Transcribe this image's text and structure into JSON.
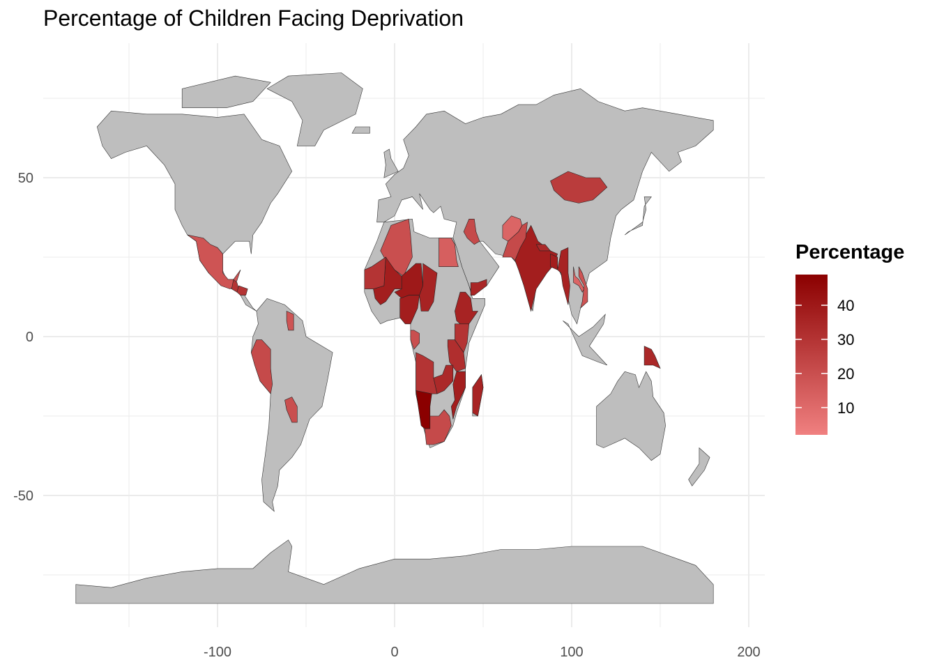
{
  "title": "Percentage of Children Facing Deprivation",
  "legend": {
    "title": "Percentage",
    "min": 2,
    "max": 49,
    "ticks": [
      10,
      20,
      30,
      40
    ],
    "color_low": "#f08080",
    "color_high": "#8b0000"
  },
  "chart_data": {
    "type": "choropleth",
    "xlim": [
      -185,
      205
    ],
    "ylim": [
      -90,
      83
    ],
    "x_ticks": [
      "-100",
      "0",
      "100",
      "200"
    ],
    "y_ticks": [
      "50",
      "0",
      "-50"
    ],
    "x_tick_values": [
      -100,
      0,
      100,
      200
    ],
    "y_tick_values": [
      50,
      0,
      -50
    ],
    "no_data_color": "#bebebe",
    "grid": true,
    "legend_position": "right",
    "regions": [
      {
        "name": "India",
        "value": 38
      },
      {
        "name": "Bangladesh",
        "value": 38
      },
      {
        "name": "Myanmar",
        "value": 36
      },
      {
        "name": "Nepal",
        "value": 34
      },
      {
        "name": "Mongolia",
        "value": 27
      },
      {
        "name": "Afghanistan",
        "value": 12
      },
      {
        "name": "Pakistan",
        "value": 22
      },
      {
        "name": "Mexico",
        "value": 18
      },
      {
        "name": "Guatemala",
        "value": 30
      },
      {
        "name": "Honduras",
        "value": 30
      },
      {
        "name": "Peru",
        "value": 22
      },
      {
        "name": "Paraguay",
        "value": 20
      },
      {
        "name": "Guyana",
        "value": 18
      },
      {
        "name": "Algeria",
        "value": 20
      },
      {
        "name": "Egypt",
        "value": 14
      },
      {
        "name": "Iraq",
        "value": 22
      },
      {
        "name": "Yemen",
        "value": 35
      },
      {
        "name": "Ethiopia",
        "value": 36
      },
      {
        "name": "Mali",
        "value": 38
      },
      {
        "name": "Niger",
        "value": 40
      },
      {
        "name": "Chad",
        "value": 36
      },
      {
        "name": "Nigeria",
        "value": 38
      },
      {
        "name": "Mauritania",
        "value": 30
      },
      {
        "name": "Angola",
        "value": 30
      },
      {
        "name": "Namibia",
        "value": 49
      },
      {
        "name": "Mozambique",
        "value": 38
      },
      {
        "name": "Madagascar",
        "value": 36
      },
      {
        "name": "South Africa",
        "value": 22
      },
      {
        "name": "Papua New Guinea",
        "value": 34
      },
      {
        "name": "Laos",
        "value": 12
      },
      {
        "name": "Vietnam",
        "value": 18
      },
      {
        "name": "Tanzania",
        "value": 32
      },
      {
        "name": "Kenya",
        "value": 30
      },
      {
        "name": "Zambia",
        "value": 34
      },
      {
        "name": "Gabon",
        "value": 20
      }
    ]
  }
}
